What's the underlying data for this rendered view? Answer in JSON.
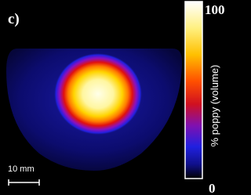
{
  "panel_label": "c)",
  "colorbar": {
    "label": "% poppy (volume)",
    "max": "100",
    "min": "0"
  },
  "scale_bar": {
    "label": "10 mm"
  }
}
